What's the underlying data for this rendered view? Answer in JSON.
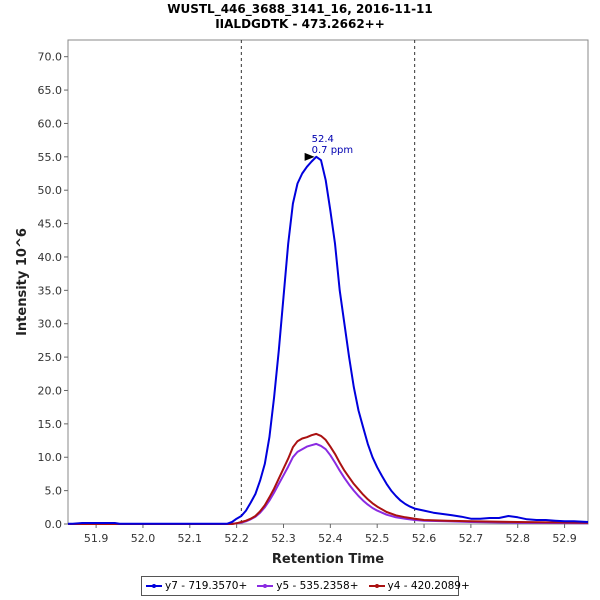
{
  "title": "WUSTL_446_3688_3141_16, 2016-11-11",
  "subtitle": "IIALDGDTK - 473.2662++",
  "chart_data": {
    "type": "line",
    "xlabel": "Retention Time",
    "ylabel": "Intensity 10^6",
    "xlim": [
      51.84,
      52.95
    ],
    "ylim": [
      0,
      72.5
    ],
    "x_ticks": [
      "51.9",
      "52.0",
      "52.1",
      "52.2",
      "52.3",
      "52.4",
      "52.5",
      "52.6",
      "52.7",
      "52.8",
      "52.9"
    ],
    "x_tick_values": [
      51.9,
      52.0,
      52.1,
      52.2,
      52.3,
      52.4,
      52.5,
      52.6,
      52.7,
      52.8,
      52.9
    ],
    "y_ticks": [
      "0.0",
      "5.0",
      "10.0",
      "15.0",
      "20.0",
      "25.0",
      "30.0",
      "35.0",
      "40.0",
      "45.0",
      "50.0",
      "55.0",
      "60.0",
      "65.0",
      "70.0"
    ],
    "y_tick_values": [
      0,
      5,
      10,
      15,
      20,
      25,
      30,
      35,
      40,
      45,
      50,
      55,
      60,
      65,
      70
    ],
    "integration_bounds": [
      52.21,
      52.58
    ],
    "annotation": {
      "x": 52.375,
      "y": 55.0,
      "line1": "52.4",
      "line2": "0.7 ppm"
    },
    "legend_position": "bottom",
    "series": [
      {
        "name": "y7 - 719.3570+",
        "color": "#0000dd",
        "points": [
          [
            51.84,
            0.05
          ],
          [
            51.85,
            0.05
          ],
          [
            51.87,
            0.15
          ],
          [
            51.94,
            0.15
          ],
          [
            51.95,
            0.05
          ],
          [
            52.18,
            0.05
          ],
          [
            52.19,
            0.3
          ],
          [
            52.2,
            0.8
          ],
          [
            52.21,
            1.2
          ],
          [
            52.22,
            2.0
          ],
          [
            52.23,
            3.2
          ],
          [
            52.24,
            4.5
          ],
          [
            52.25,
            6.5
          ],
          [
            52.26,
            9.0
          ],
          [
            52.27,
            13.0
          ],
          [
            52.28,
            19.0
          ],
          [
            52.29,
            26.0
          ],
          [
            52.3,
            34.0
          ],
          [
            52.31,
            42.0
          ],
          [
            52.32,
            48.0
          ],
          [
            52.33,
            51.0
          ],
          [
            52.34,
            52.5
          ],
          [
            52.35,
            53.5
          ],
          [
            52.36,
            54.3
          ],
          [
            52.37,
            55.0
          ],
          [
            52.38,
            54.5
          ],
          [
            52.39,
            51.5
          ],
          [
            52.4,
            47.0
          ],
          [
            52.41,
            42.0
          ],
          [
            52.42,
            35.0
          ],
          [
            52.43,
            30.0
          ],
          [
            52.44,
            25.0
          ],
          [
            52.45,
            20.5
          ],
          [
            52.46,
            17.0
          ],
          [
            52.47,
            14.5
          ],
          [
            52.48,
            12.0
          ],
          [
            52.49,
            10.0
          ],
          [
            52.5,
            8.5
          ],
          [
            52.51,
            7.2
          ],
          [
            52.52,
            6.0
          ],
          [
            52.53,
            5.0
          ],
          [
            52.54,
            4.2
          ],
          [
            52.55,
            3.5
          ],
          [
            52.56,
            3.0
          ],
          [
            52.57,
            2.6
          ],
          [
            52.58,
            2.3
          ],
          [
            52.6,
            2.0
          ],
          [
            52.62,
            1.7
          ],
          [
            52.64,
            1.5
          ],
          [
            52.66,
            1.3
          ],
          [
            52.68,
            1.1
          ],
          [
            52.7,
            0.8
          ],
          [
            52.72,
            0.8
          ],
          [
            52.74,
            0.9
          ],
          [
            52.76,
            0.9
          ],
          [
            52.78,
            1.2
          ],
          [
            52.8,
            1.0
          ],
          [
            52.82,
            0.7
          ],
          [
            52.84,
            0.6
          ],
          [
            52.86,
            0.6
          ],
          [
            52.88,
            0.5
          ],
          [
            52.9,
            0.4
          ],
          [
            52.92,
            0.4
          ],
          [
            52.95,
            0.3
          ]
        ]
      },
      {
        "name": "y5 - 535.2358+",
        "color": "#8a2be2",
        "points": [
          [
            51.84,
            0.0
          ],
          [
            52.19,
            0.0
          ],
          [
            52.2,
            0.1
          ],
          [
            52.21,
            0.2
          ],
          [
            52.22,
            0.4
          ],
          [
            52.23,
            0.7
          ],
          [
            52.24,
            1.1
          ],
          [
            52.25,
            1.7
          ],
          [
            52.26,
            2.5
          ],
          [
            52.27,
            3.5
          ],
          [
            52.28,
            4.7
          ],
          [
            52.29,
            6.0
          ],
          [
            52.3,
            7.3
          ],
          [
            52.31,
            8.6
          ],
          [
            52.32,
            10.0
          ],
          [
            52.33,
            10.8
          ],
          [
            52.34,
            11.2
          ],
          [
            52.35,
            11.6
          ],
          [
            52.36,
            11.8
          ],
          [
            52.37,
            12.0
          ],
          [
            52.38,
            11.7
          ],
          [
            52.39,
            11.2
          ],
          [
            52.4,
            10.3
          ],
          [
            52.41,
            9.2
          ],
          [
            52.42,
            8.0
          ],
          [
            52.43,
            6.9
          ],
          [
            52.44,
            5.9
          ],
          [
            52.45,
            5.0
          ],
          [
            52.46,
            4.2
          ],
          [
            52.47,
            3.5
          ],
          [
            52.48,
            2.9
          ],
          [
            52.49,
            2.4
          ],
          [
            52.5,
            2.0
          ],
          [
            52.52,
            1.4
          ],
          [
            52.54,
            1.0
          ],
          [
            52.56,
            0.8
          ],
          [
            52.58,
            0.6
          ],
          [
            52.6,
            0.5
          ],
          [
            52.65,
            0.4
          ],
          [
            52.7,
            0.3
          ],
          [
            52.8,
            0.2
          ],
          [
            52.95,
            0.1
          ]
        ]
      },
      {
        "name": "y4 - 420.2089+",
        "color": "#aa1111",
        "points": [
          [
            51.84,
            0.0
          ],
          [
            52.19,
            0.0
          ],
          [
            52.2,
            0.1
          ],
          [
            52.21,
            0.3
          ],
          [
            52.22,
            0.5
          ],
          [
            52.23,
            0.8
          ],
          [
            52.24,
            1.2
          ],
          [
            52.25,
            1.9
          ],
          [
            52.26,
            2.8
          ],
          [
            52.27,
            4.0
          ],
          [
            52.28,
            5.3
          ],
          [
            52.29,
            6.8
          ],
          [
            52.3,
            8.3
          ],
          [
            52.31,
            9.8
          ],
          [
            52.32,
            11.5
          ],
          [
            52.33,
            12.4
          ],
          [
            52.34,
            12.8
          ],
          [
            52.35,
            13.0
          ],
          [
            52.36,
            13.3
          ],
          [
            52.37,
            13.5
          ],
          [
            52.38,
            13.2
          ],
          [
            52.39,
            12.6
          ],
          [
            52.4,
            11.6
          ],
          [
            52.41,
            10.5
          ],
          [
            52.42,
            9.2
          ],
          [
            52.43,
            8.0
          ],
          [
            52.44,
            7.0
          ],
          [
            52.45,
            6.0
          ],
          [
            52.46,
            5.2
          ],
          [
            52.47,
            4.4
          ],
          [
            52.48,
            3.7
          ],
          [
            52.49,
            3.1
          ],
          [
            52.5,
            2.6
          ],
          [
            52.52,
            1.8
          ],
          [
            52.54,
            1.3
          ],
          [
            52.56,
            1.0
          ],
          [
            52.58,
            0.8
          ],
          [
            52.6,
            0.6
          ],
          [
            52.65,
            0.5
          ],
          [
            52.7,
            0.4
          ],
          [
            52.8,
            0.3
          ],
          [
            52.95,
            0.2
          ]
        ]
      }
    ]
  }
}
